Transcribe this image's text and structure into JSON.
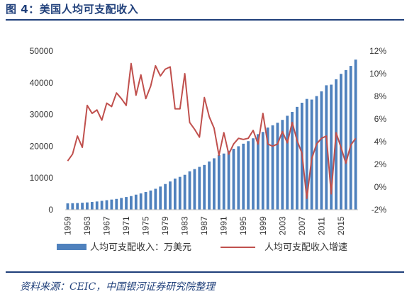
{
  "header": {
    "title": "图 4：美国人均可支配收入"
  },
  "footer": {
    "source": "资料来源：CEIC，中国银河证券研究院整理"
  },
  "chart_data": {
    "type": "bar",
    "title": "",
    "x_tick_labels": [
      "1959",
      "1963",
      "1967",
      "1971",
      "1975",
      "1979",
      "1983",
      "1987",
      "1991",
      "1995",
      "1999",
      "2003",
      "2007",
      "2011",
      "2015"
    ],
    "y_left": {
      "ticks": [
        "0",
        "10000",
        "20000",
        "30000",
        "40000",
        "50000"
      ],
      "ylim": [
        0,
        50000
      ]
    },
    "y_right": {
      "ticks": [
        "-2%",
        "0%",
        "2%",
        "4%",
        "6%",
        "8%",
        "10%",
        "12%"
      ],
      "ylim": [
        -2,
        12
      ],
      "unit": "%"
    },
    "grid": false,
    "legend_position": "bottom",
    "colors": {
      "bar": "#4f81bd",
      "line": "#c0504d"
    },
    "x": [
      1959,
      1960,
      1961,
      1962,
      1963,
      1964,
      1965,
      1966,
      1967,
      1968,
      1969,
      1970,
      1971,
      1972,
      1973,
      1974,
      1975,
      1976,
      1977,
      1978,
      1979,
      1980,
      1981,
      1982,
      1983,
      1984,
      1985,
      1986,
      1987,
      1988,
      1989,
      1990,
      1991,
      1992,
      1993,
      1994,
      1995,
      1996,
      1997,
      1998,
      1999,
      2000,
      2001,
      2002,
      2003,
      2004,
      2005,
      2006,
      2007,
      2008,
      2009,
      2010,
      2011,
      2012,
      2013,
      2014,
      2015,
      2016,
      2017,
      2018
    ],
    "series": [
      {
        "name": "人均可支配收入：万美元",
        "type": "bar",
        "axis": "left",
        "values": [
          2000,
          2050,
          2100,
          2200,
          2300,
          2450,
          2600,
          2800,
          3000,
          3200,
          3400,
          3700,
          4000,
          4300,
          4750,
          5150,
          5600,
          6050,
          6600,
          7300,
          8100,
          8900,
          9800,
          10350,
          11000,
          12100,
          12800,
          13500,
          14100,
          15200,
          16200,
          17200,
          17700,
          18600,
          19200,
          20000,
          20800,
          21600,
          22500,
          23800,
          24500,
          25900,
          26600,
          27400,
          28300,
          29600,
          30800,
          32400,
          33700,
          34900,
          34700,
          35800,
          37300,
          39200,
          39400,
          41100,
          42800,
          44000,
          45300,
          47300
        ]
      },
      {
        "name": "人均可支配收入增速",
        "type": "line",
        "axis": "right",
        "values": [
          2.3,
          2.9,
          4.5,
          3.5,
          7.2,
          6.5,
          6.8,
          5.9,
          7.4,
          7.1,
          8.3,
          7.8,
          7.2,
          10.9,
          8.1,
          9.9,
          7.8,
          8.9,
          10.7,
          9.8,
          10.4,
          10.6,
          6.9,
          6.9,
          10.0,
          5.7,
          5.1,
          4.4,
          7.9,
          6.2,
          5.2,
          2.8,
          4.8,
          2.9,
          3.8,
          4.3,
          4.2,
          4.3,
          5.0,
          3.8,
          6.5,
          3.8,
          3.6,
          3.8,
          4.9,
          3.9,
          5.7,
          4.1,
          3.0,
          -1.0,
          2.5,
          3.8,
          4.3,
          4.5,
          -0.6,
          4.8,
          3.5,
          2.1,
          3.7,
          4.3
        ]
      }
    ]
  }
}
